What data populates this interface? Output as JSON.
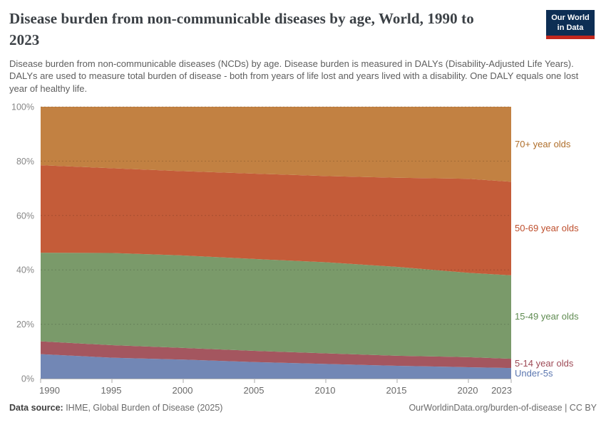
{
  "header": {
    "title": "Disease burden from non-communicable diseases by age, World, 1990 to 2023",
    "subtitle": "Disease burden from non-communicable diseases (NCDs) by age. Disease burden is measured in DALYs (Disability-Adjusted Life Years). DALYs are used to measure total burden of disease - both from years of life lost and years lived with a disability. One DALY equals one lost year of healthy life.",
    "logo": {
      "line1": "Our World",
      "line2": "in Data",
      "bg_color": "#0d2e54",
      "bar_color": "#c2271e"
    }
  },
  "chart_data": {
    "type": "area",
    "stacked": true,
    "normalized_percent": true,
    "title": "Disease burden from non-communicable diseases by age",
    "x": [
      1990,
      1995,
      2000,
      2005,
      2010,
      2015,
      2020,
      2023
    ],
    "series": [
      {
        "name": "Under-5s",
        "color": "#7287b5",
        "label_color": "#5c77b0",
        "values": [
          9.0,
          7.7,
          7.0,
          6.1,
          5.4,
          4.7,
          4.2,
          3.9
        ]
      },
      {
        "name": "5-14 year olds",
        "color": "#a4565f",
        "label_color": "#9e4a56",
        "values": [
          4.7,
          4.6,
          4.3,
          4.1,
          3.9,
          3.7,
          3.7,
          3.4
        ]
      },
      {
        "name": "15-49 year olds",
        "color": "#7a9a6a",
        "label_color": "#5f8b51",
        "values": [
          32.6,
          33.9,
          34.0,
          33.8,
          33.5,
          32.7,
          31.0,
          30.7
        ]
      },
      {
        "name": "50-69 year olds",
        "color": "#c45c39",
        "label_color": "#be4e2c",
        "values": [
          32.2,
          31.2,
          31.0,
          31.4,
          31.7,
          32.8,
          34.6,
          34.4
        ]
      },
      {
        "name": "70+ year olds",
        "color": "#c28142",
        "label_color": "#af6e2a",
        "values": [
          21.5,
          22.6,
          23.7,
          24.6,
          25.5,
          26.1,
          26.5,
          27.6
        ]
      }
    ],
    "y_ticks": [
      "0%",
      "20%",
      "40%",
      "60%",
      "80%",
      "100%"
    ],
    "x_ticks": [
      "1990",
      "1995",
      "2000",
      "2005",
      "2010",
      "2015",
      "2020",
      "2023"
    ],
    "ylim": [
      0,
      100
    ],
    "grid": true,
    "legend_position": "right-of-plot"
  },
  "footer": {
    "source_label": "Data source:",
    "source_text": " IHME, Global Burden of Disease (2025)",
    "credit": "OurWorldinData.org/burden-of-disease | CC BY"
  }
}
